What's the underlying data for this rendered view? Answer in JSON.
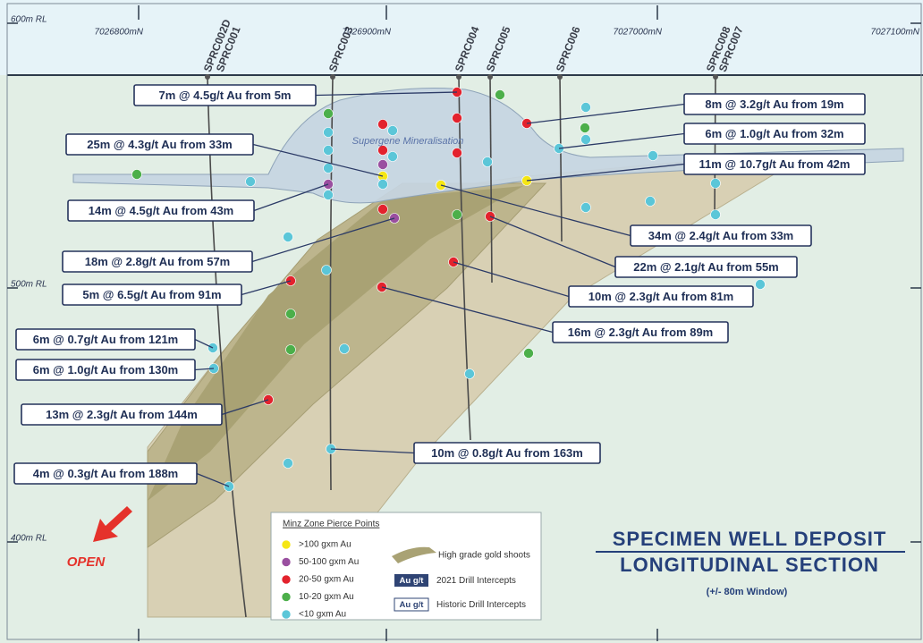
{
  "axes": {
    "elevation_labels": [
      "600m RL",
      "500m RL",
      "400m RL"
    ],
    "northing_labels": [
      "7026800mN",
      "7026900mN",
      "7027000mN",
      "7027100mN"
    ]
  },
  "drill_holes": [
    "SPRC002D",
    "SPRC001",
    "SPRC003",
    "SPRC004",
    "SPRC005",
    "SPRC006",
    "SPRC008",
    "SPRC007"
  ],
  "intercepts": [
    "7m @ 4.5g/t Au from 5m",
    "25m @ 4.3g/t Au from 33m",
    "14m @ 4.5g/t Au from 43m",
    "18m @ 2.8g/t Au from 57m",
    "5m @ 6.5g/t Au from 91m",
    "6m @ 0.7g/t Au from 121m",
    "6m @ 1.0g/t Au from 130m",
    "13m @ 2.3g/t Au from 144m",
    "4m @ 0.3g/t Au from 188m",
    "10m @ 0.8g/t Au from 163m",
    "8m @ 3.2g/t Au from 19m",
    "6m @ 1.0g/t Au from 32m",
    "11m @ 10.7g/t Au from 42m",
    "34m @ 2.4g/t Au from 33m",
    "22m @ 2.1g/t Au from 55m",
    "10m @ 2.3g/t Au from 81m",
    "16m @ 2.3g/t Au from 89m"
  ],
  "zone_label": "Supergene Mineralisation",
  "open_label": "OPEN",
  "title": {
    "line1": "SPECIMEN WELL DEPOSIT",
    "line2": "LONGITUDINAL SECTION",
    "subtitle": "(+/- 80m Window)"
  },
  "legend": {
    "title": "Minz Zone Pierce Points",
    "pierce_points": [
      ">100 gxm Au",
      "50-100 gxm Au",
      "20-50 gxm Au",
      "10-20 gxm Au",
      "<10 gxm Au"
    ],
    "shoots": "High grade gold shoots",
    "new_key": "Au g/t",
    "new_label": "2021 Drill Intercepts",
    "historic_key": "Au g/t",
    "historic_label": "Historic Drill Intercepts"
  }
}
